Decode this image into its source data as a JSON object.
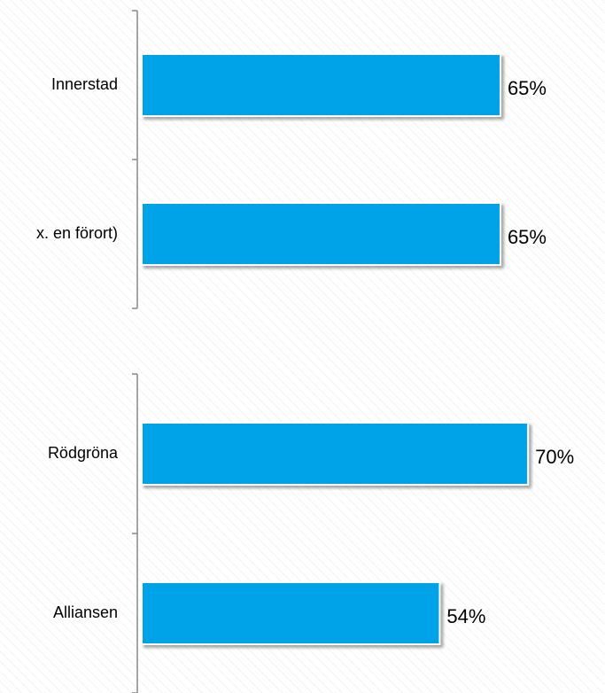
{
  "chart_data": [
    {
      "type": "bar",
      "orientation": "horizontal",
      "categories": [
        "Innerstad",
        "x. en förort)"
      ],
      "values": [
        65,
        65
      ],
      "value_labels": [
        "65%",
        "65%"
      ],
      "color": "#00a2e8",
      "xlim": [
        0,
        100
      ]
    },
    {
      "type": "bar",
      "orientation": "horizontal",
      "categories": [
        "Rödgröna",
        "Alliansen"
      ],
      "values": [
        70,
        54
      ],
      "value_labels": [
        "70%",
        "54%"
      ],
      "color": "#00a2e8",
      "xlim": [
        0,
        100
      ]
    }
  ]
}
